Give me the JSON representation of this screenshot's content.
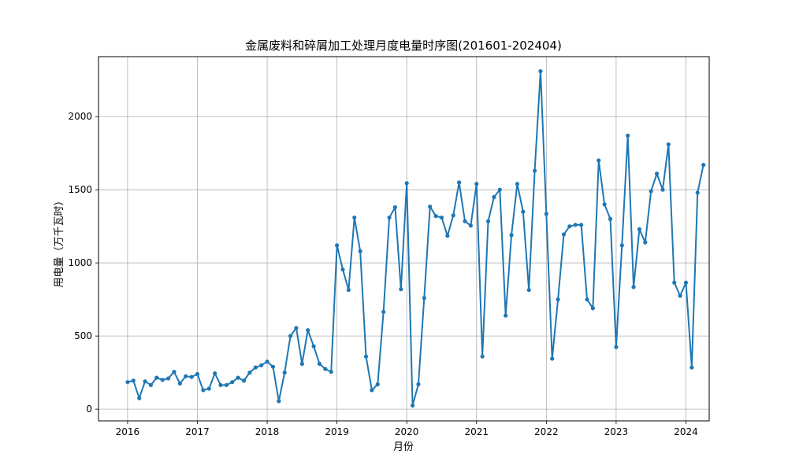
{
  "chart_data": {
    "type": "line",
    "title": "金属废料和碎屑加工处理月度电量时序图(201601-202404)",
    "xlabel": "月份",
    "ylabel": "用电量（万千瓦时）",
    "x_ticks": [
      "2016",
      "2017",
      "2018",
      "2019",
      "2020",
      "2021",
      "2022",
      "2023",
      "2024"
    ],
    "y_ticks": [
      0,
      500,
      1000,
      1500,
      2000
    ],
    "ylim": [
      -80,
      2410
    ],
    "xlim_months": [
      -5,
      100
    ],
    "grid": true,
    "line_color": "#1f77b4",
    "series": [
      {
        "x": [
          "2016-01",
          "2016-02",
          "2016-03",
          "2016-04",
          "2016-05",
          "2016-06",
          "2016-07",
          "2016-08",
          "2016-09",
          "2016-10",
          "2016-11",
          "2016-12",
          "2017-01",
          "2017-02",
          "2017-03",
          "2017-04",
          "2017-05",
          "2017-06",
          "2017-07",
          "2017-08",
          "2017-09",
          "2017-10",
          "2017-11",
          "2017-12",
          "2018-01",
          "2018-02",
          "2018-03",
          "2018-04",
          "2018-05",
          "2018-06",
          "2018-07",
          "2018-08",
          "2018-09",
          "2018-10",
          "2018-11",
          "2018-12",
          "2019-01",
          "2019-02",
          "2019-03",
          "2019-04",
          "2019-05",
          "2019-06",
          "2019-07",
          "2019-08",
          "2019-09",
          "2019-10",
          "2019-11",
          "2019-12",
          "2020-01",
          "2020-02",
          "2020-03",
          "2020-04",
          "2020-05",
          "2020-06",
          "2020-07",
          "2020-08",
          "2020-09",
          "2020-10",
          "2020-11",
          "2020-12",
          "2021-01",
          "2021-02",
          "2021-03",
          "2021-04",
          "2021-05",
          "2021-06",
          "2021-07",
          "2021-08",
          "2021-09",
          "2021-10",
          "2021-11",
          "2021-12",
          "2022-01",
          "2022-02",
          "2022-03",
          "2022-04",
          "2022-05",
          "2022-06",
          "2022-07",
          "2022-08",
          "2022-09",
          "2022-10",
          "2022-11",
          "2022-12",
          "2023-01",
          "2023-02",
          "2023-03",
          "2023-04",
          "2023-05",
          "2023-06",
          "2023-07",
          "2023-08",
          "2023-09",
          "2023-10",
          "2023-11",
          "2023-12",
          "2024-01",
          "2024-02",
          "2024-03",
          "2024-04"
        ],
        "values": [
          185,
          195,
          75,
          190,
          165,
          215,
          200,
          210,
          255,
          175,
          225,
          220,
          240,
          130,
          140,
          245,
          165,
          165,
          185,
          215,
          195,
          250,
          285,
          300,
          325,
          290,
          55,
          250,
          500,
          555,
          310,
          540,
          430,
          310,
          275,
          255,
          1120,
          955,
          815,
          1310,
          1080,
          360,
          130,
          170,
          665,
          1310,
          1380,
          820,
          1545,
          25,
          170,
          760,
          1385,
          1320,
          1310,
          1185,
          1325,
          1550,
          1285,
          1255,
          1540,
          360,
          1285,
          1450,
          1500,
          640,
          1190,
          1540,
          1350,
          815,
          1630,
          2310,
          1335,
          345,
          750,
          1195,
          1250,
          1260,
          1260,
          750,
          690,
          1700,
          1400,
          1300,
          425,
          1120,
          1870,
          835,
          1230,
          1140,
          1490,
          1610,
          1500,
          1810,
          865,
          775,
          865,
          285,
          1480,
          1670
        ]
      }
    ]
  }
}
